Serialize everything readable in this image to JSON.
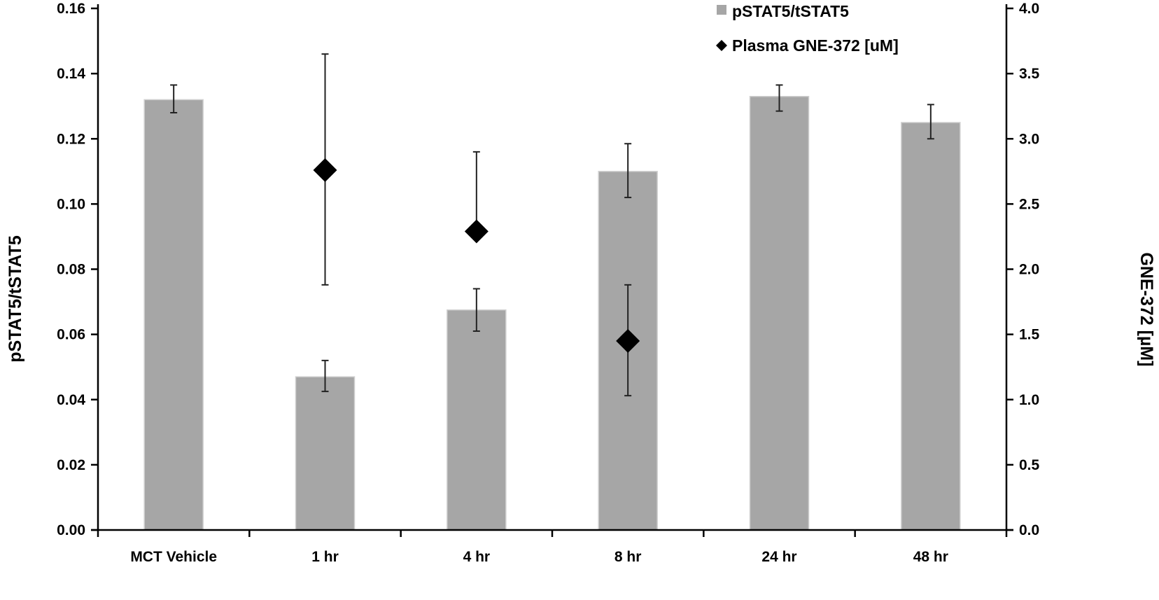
{
  "chart_data": {
    "type": "bar",
    "title": "",
    "categories": [
      "MCT Vehicle",
      "1 hr",
      "4 hr",
      "8 hr",
      "24 hr",
      "48 hr"
    ],
    "series": [
      {
        "name": "pSTAT5/tSTAT5",
        "kind": "bar",
        "axis": "left",
        "color": "#a6a6a6",
        "values": [
          0.132,
          0.047,
          0.0675,
          0.11,
          0.133,
          0.125
        ],
        "error_low": [
          0.128,
          0.0425,
          0.061,
          0.102,
          0.1285,
          0.12
        ],
        "error_high": [
          0.1365,
          0.052,
          0.074,
          0.1185,
          0.1365,
          0.1305
        ]
      },
      {
        "name": "Plasma GNE-372 [uM]",
        "kind": "scatter",
        "axis": "right",
        "color": "#000000",
        "marker": "diamond",
        "values": [
          null,
          2.76,
          2.29,
          1.45,
          null,
          null
        ],
        "error_low": [
          null,
          1.88,
          null,
          1.03,
          null,
          null
        ],
        "error_high": [
          null,
          3.65,
          2.9,
          1.88,
          null,
          null
        ]
      }
    ],
    "ylabel": "pSTAT5/tSTAT5",
    "y2label": "GNE-372 [µM]",
    "xlabel": "",
    "ylim": [
      0,
      0.16
    ],
    "y2lim": [
      0,
      4.0
    ],
    "yticks": [
      "0.00",
      "0.02",
      "0.04",
      "0.06",
      "0.08",
      "0.10",
      "0.12",
      "0.14",
      "0.16"
    ],
    "y2ticks": [
      "0.0",
      "0.5",
      "1.0",
      "1.5",
      "2.0",
      "2.5",
      "3.0",
      "3.5",
      "4.0"
    ],
    "grid": false,
    "legend_position": "top-right"
  }
}
